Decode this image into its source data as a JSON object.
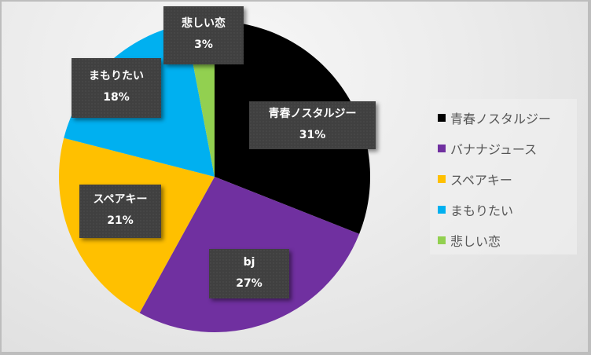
{
  "chart_data": {
    "type": "pie",
    "title": "",
    "categories": [
      "青春ノスタルジー",
      "bj",
      "スペアキー",
      "まもりたい",
      "悲しい恋"
    ],
    "values": [
      31,
      27,
      21,
      18,
      3
    ],
    "value_format": "percent",
    "colors": [
      "#000000",
      "#7030a0",
      "#ffc000",
      "#00b0f0",
      "#92d050"
    ],
    "legend_position": "right",
    "legend_entries": [
      "青春ノスタルジー",
      "バナナジュース",
      "スペアキー",
      "まもりたい",
      "悲しい恋"
    ],
    "data_labels": [
      {
        "name": "青春ノスタルジー",
        "pct": "31%"
      },
      {
        "name": "bj",
        "pct": "27%"
      },
      {
        "name": "スペアキー",
        "pct": "21%"
      },
      {
        "name": "まもりたい",
        "pct": "18%"
      },
      {
        "name": "悲しい恋",
        "pct": "3%"
      }
    ]
  }
}
